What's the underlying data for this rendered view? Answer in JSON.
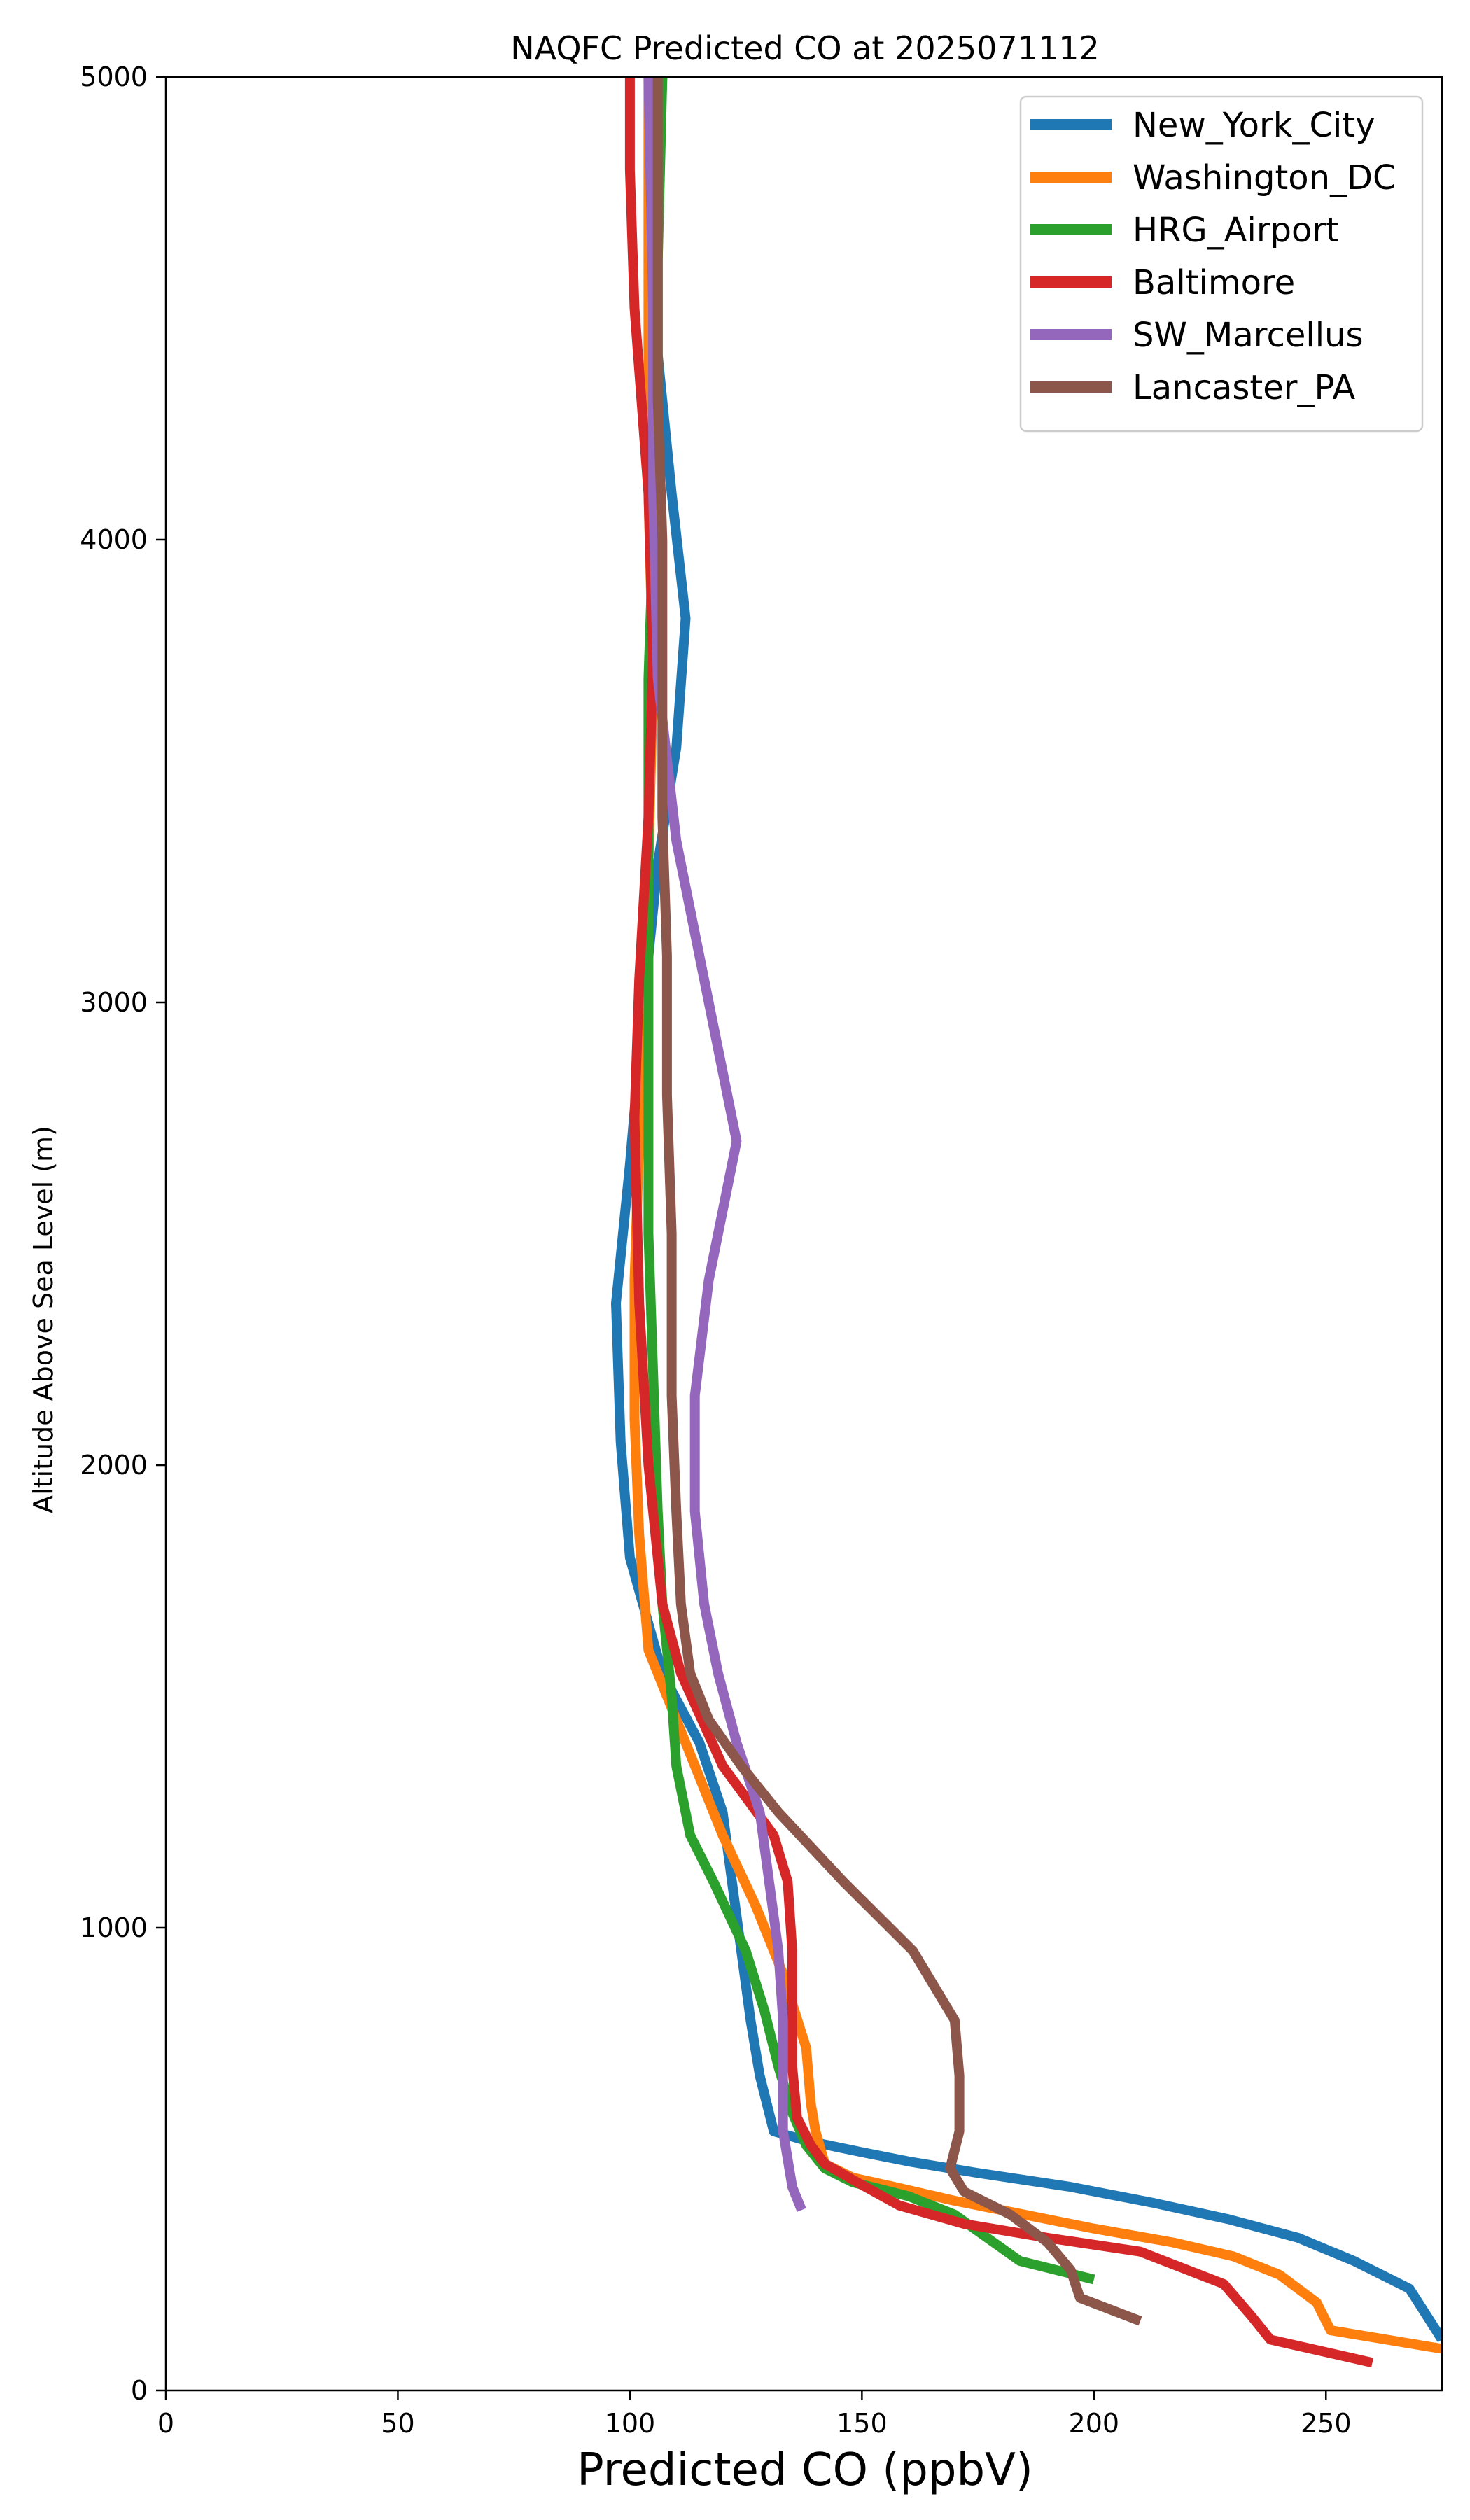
{
  "chart_data": {
    "type": "line",
    "title": "NAQFC Predicted CO at 2025071112",
    "xlabel": "Predicted CO (ppbV)",
    "ylabel": "Altitude Above Sea Level (m)",
    "xlim": [
      0,
      275
    ],
    "ylim": [
      0,
      5000
    ],
    "xticks": [
      0,
      50,
      100,
      150,
      200,
      250
    ],
    "yticks": [
      0,
      1000,
      2000,
      3000,
      4000,
      5000
    ],
    "grid": false,
    "legend_position": "top-right",
    "series": [
      {
        "name": "New_York_City",
        "color": "#1f77b4",
        "points": [
          [
            275,
            110
          ],
          [
            268,
            220
          ],
          [
            256,
            280
          ],
          [
            244,
            330
          ],
          [
            229,
            370
          ],
          [
            213,
            405
          ],
          [
            195,
            440
          ],
          [
            175,
            470
          ],
          [
            160,
            495
          ],
          [
            150,
            515
          ],
          [
            138,
            540
          ],
          [
            131,
            560
          ],
          [
            128,
            680
          ],
          [
            126,
            800
          ],
          [
            124,
            950
          ],
          [
            122,
            1100
          ],
          [
            120,
            1250
          ],
          [
            115,
            1400
          ],
          [
            107,
            1550
          ],
          [
            100,
            1800
          ],
          [
            98,
            2050
          ],
          [
            97,
            2350
          ],
          [
            100,
            2650
          ],
          [
            103,
            3000
          ],
          [
            106,
            3300
          ],
          [
            110,
            3550
          ],
          [
            112,
            3830
          ],
          [
            109,
            4100
          ],
          [
            106,
            4400
          ],
          [
            106,
            4700
          ],
          [
            107,
            5000
          ]
        ]
      },
      {
        "name": "Washington_DC",
        "color": "#ff7f0e",
        "points": [
          [
            275,
            90
          ],
          [
            251,
            130
          ],
          [
            248,
            190
          ],
          [
            240,
            250
          ],
          [
            230,
            290
          ],
          [
            217,
            320
          ],
          [
            200,
            350
          ],
          [
            185,
            380
          ],
          [
            170,
            410
          ],
          [
            157,
            440
          ],
          [
            148,
            460
          ],
          [
            142,
            490
          ],
          [
            140,
            560
          ],
          [
            139,
            620
          ],
          [
            138,
            740
          ],
          [
            133,
            900
          ],
          [
            127,
            1050
          ],
          [
            120,
            1200
          ],
          [
            112,
            1400
          ],
          [
            104,
            1600
          ],
          [
            102,
            1850
          ],
          [
            101,
            2100
          ],
          [
            101,
            2400
          ],
          [
            102,
            2700
          ],
          [
            103,
            3000
          ],
          [
            104,
            3300
          ],
          [
            105,
            3700
          ],
          [
            104,
            4100
          ],
          [
            104,
            4500
          ],
          [
            104,
            5000
          ]
        ]
      },
      {
        "name": "HRG_Airport",
        "color": "#2ca02c",
        "points": [
          [
            200,
            240
          ],
          [
            184,
            280
          ],
          [
            177,
            330
          ],
          [
            170,
            380
          ],
          [
            160,
            420
          ],
          [
            148,
            450
          ],
          [
            142,
            480
          ],
          [
            138,
            530
          ],
          [
            135,
            600
          ],
          [
            132,
            700
          ],
          [
            129,
            820
          ],
          [
            125,
            950
          ],
          [
            118,
            1100
          ],
          [
            113,
            1200
          ],
          [
            110,
            1350
          ],
          [
            109,
            1500
          ],
          [
            107,
            1700
          ],
          [
            106,
            1900
          ],
          [
            105,
            2200
          ],
          [
            104,
            2500
          ],
          [
            104,
            2800
          ],
          [
            104,
            3100
          ],
          [
            104,
            3400
          ],
          [
            104,
            3700
          ],
          [
            105,
            4000
          ],
          [
            106,
            4300
          ],
          [
            106,
            4600
          ],
          [
            107,
            5000
          ]
        ]
      },
      {
        "name": "Baltimore",
        "color": "#d62728",
        "points": [
          [
            260,
            60
          ],
          [
            238,
            110
          ],
          [
            234,
            160
          ],
          [
            228,
            230
          ],
          [
            210,
            300
          ],
          [
            190,
            330
          ],
          [
            172,
            360
          ],
          [
            158,
            400
          ],
          [
            149,
            450
          ],
          [
            142,
            490
          ],
          [
            139,
            530
          ],
          [
            136,
            590
          ],
          [
            135,
            700
          ],
          [
            135,
            820
          ],
          [
            135,
            950
          ],
          [
            134,
            1100
          ],
          [
            131,
            1200
          ],
          [
            120,
            1350
          ],
          [
            111,
            1550
          ],
          [
            107,
            1700
          ],
          [
            104,
            2000
          ],
          [
            102,
            2350
          ],
          [
            101,
            2750
          ],
          [
            102,
            3050
          ],
          [
            104,
            3400
          ],
          [
            105,
            3750
          ],
          [
            104,
            4100
          ],
          [
            101,
            4500
          ],
          [
            100,
            4800
          ],
          [
            100,
            5000
          ]
        ]
      },
      {
        "name": "SW_Marcellus",
        "color": "#9467bd",
        "points": [
          [
            137,
            390
          ],
          [
            135,
            440
          ],
          [
            134,
            500
          ],
          [
            133,
            560
          ],
          [
            133,
            700
          ],
          [
            133,
            800
          ],
          [
            132,
            950
          ],
          [
            130,
            1100
          ],
          [
            128,
            1250
          ],
          [
            123,
            1400
          ],
          [
            119,
            1550
          ],
          [
            116,
            1700
          ],
          [
            114,
            1900
          ],
          [
            114,
            2150
          ],
          [
            117,
            2400
          ],
          [
            123,
            2700
          ],
          [
            117,
            3000
          ],
          [
            110,
            3350
          ],
          [
            106,
            3700
          ],
          [
            105,
            4100
          ],
          [
            105,
            4500
          ],
          [
            104,
            5000
          ]
        ]
      },
      {
        "name": "Lancaster_PA",
        "color": "#8c564b",
        "points": [
          [
            210,
            150
          ],
          [
            197,
            200
          ],
          [
            195,
            260
          ],
          [
            190,
            320
          ],
          [
            182,
            380
          ],
          [
            172,
            430
          ],
          [
            169,
            480
          ],
          [
            171,
            560
          ],
          [
            171,
            680
          ],
          [
            170,
            800
          ],
          [
            161,
            950
          ],
          [
            146,
            1100
          ],
          [
            132,
            1250
          ],
          [
            124,
            1350
          ],
          [
            117,
            1450
          ],
          [
            113,
            1550
          ],
          [
            111,
            1700
          ],
          [
            110,
            1900
          ],
          [
            109,
            2150
          ],
          [
            109,
            2500
          ],
          [
            108,
            2800
          ],
          [
            108,
            3100
          ],
          [
            107,
            3400
          ],
          [
            107,
            3700
          ],
          [
            107,
            4000
          ],
          [
            106,
            4300
          ],
          [
            106,
            4650
          ],
          [
            106,
            5000
          ]
        ]
      }
    ]
  }
}
